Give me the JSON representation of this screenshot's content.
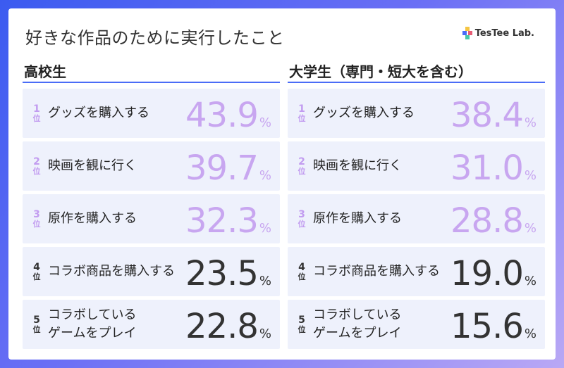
{
  "title": "好きな作品のために実行したこと",
  "logo": {
    "text": "TesTee Lab."
  },
  "colors": {
    "highlight": "#c8a6f0",
    "normal": "#333333",
    "accent": "#4a6cf7",
    "row_bg": "#eef1fc"
  },
  "rank_unit": "位",
  "percent_sign": "%",
  "chart_data": [
    {
      "type": "table",
      "title": "高校生",
      "rows": [
        {
          "rank": "1",
          "label": "グッズを購入する",
          "value": "43.9",
          "highlight": true
        },
        {
          "rank": "2",
          "label": "映画を観に行く",
          "value": "39.7",
          "highlight": true
        },
        {
          "rank": "3",
          "label": "原作を購入する",
          "value": "32.3",
          "highlight": true
        },
        {
          "rank": "4",
          "label": "コラボ商品を購入する",
          "value": "23.5",
          "highlight": false
        },
        {
          "rank": "5",
          "label": "コラボしている\nゲームをプレイ",
          "value": "22.8",
          "highlight": false
        }
      ]
    },
    {
      "type": "table",
      "title": "大学生（専門・短大を含む）",
      "rows": [
        {
          "rank": "1",
          "label": "グッズを購入する",
          "value": "38.4",
          "highlight": true
        },
        {
          "rank": "2",
          "label": "映画を観に行く",
          "value": "31.0",
          "highlight": true
        },
        {
          "rank": "3",
          "label": "原作を購入する",
          "value": "28.8",
          "highlight": true
        },
        {
          "rank": "4",
          "label": "コラボ商品を購入する",
          "value": "19.0",
          "highlight": false
        },
        {
          "rank": "5",
          "label": "コラボしている\nゲームをプレイ",
          "value": "15.6",
          "highlight": false
        }
      ]
    }
  ]
}
